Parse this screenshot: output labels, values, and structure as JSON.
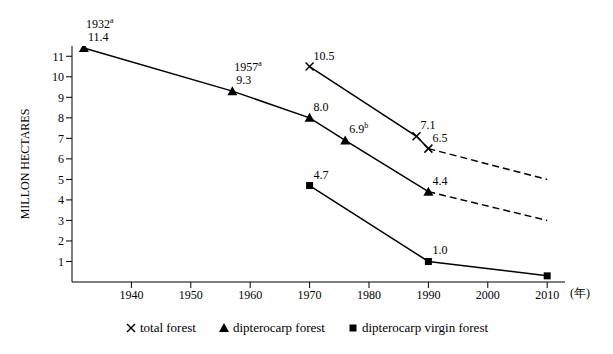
{
  "chart_data": {
    "type": "line",
    "y_label": "MILLON HECTARES",
    "x_label": "(年)",
    "xlim": [
      1930,
      2013
    ],
    "xticks": [
      1940,
      1950,
      1960,
      1970,
      1980,
      1990,
      2000,
      2010
    ],
    "ylim": [
      0,
      11.5
    ],
    "yticks": [
      1,
      2,
      3,
      4,
      5,
      6,
      7,
      8,
      9,
      10,
      11
    ],
    "grid": false,
    "data_labels": true,
    "legend": "bottom",
    "annotations": [
      {
        "x": 1932,
        "y": 11.4,
        "text": "1932",
        "note": "a"
      },
      {
        "x": 1957,
        "y": 9.3,
        "text": "1957",
        "note": "a"
      }
    ],
    "series": [
      {
        "name": "total forest",
        "color": "#000000",
        "marker": "x",
        "line_style": "solid",
        "x": [
          1970,
          1988,
          1990
        ],
        "values": [
          10.5,
          7.1,
          6.5
        ],
        "value_labels": [
          "10.5",
          "7.1",
          "6.5"
        ]
      },
      {
        "name": "total forest",
        "color": "#000000",
        "marker": "none",
        "line_style": "dashed",
        "x": [
          1990,
          2010
        ],
        "values": [
          6.5,
          5.0
        ],
        "value_labels": [
          null,
          null
        ]
      },
      {
        "name": "dipterocarp forest",
        "color": "#000000",
        "marker": "triangle",
        "line_style": "solid",
        "x": [
          1932,
          1957,
          1970,
          1976,
          1990
        ],
        "values": [
          11.4,
          9.3,
          8.0,
          6.9,
          4.4
        ],
        "value_labels": [
          "11.4",
          "9.3",
          "8.0",
          "6.9",
          "4.4"
        ],
        "label_notes": [
          null,
          null,
          null,
          "b",
          null
        ]
      },
      {
        "name": "dipterocarp forest",
        "color": "#000000",
        "marker": "none",
        "line_style": "dashed",
        "x": [
          1990,
          2010
        ],
        "values": [
          4.4,
          3.0
        ],
        "value_labels": [
          null,
          null
        ]
      },
      {
        "name": "dipterocarp virgin forest",
        "color": "#000000",
        "marker": "square",
        "line_style": "solid",
        "x": [
          1970,
          1990,
          2010
        ],
        "values": [
          4.7,
          1.0,
          0.3
        ],
        "value_labels": [
          "4.7",
          "1.0",
          null
        ]
      }
    ]
  }
}
